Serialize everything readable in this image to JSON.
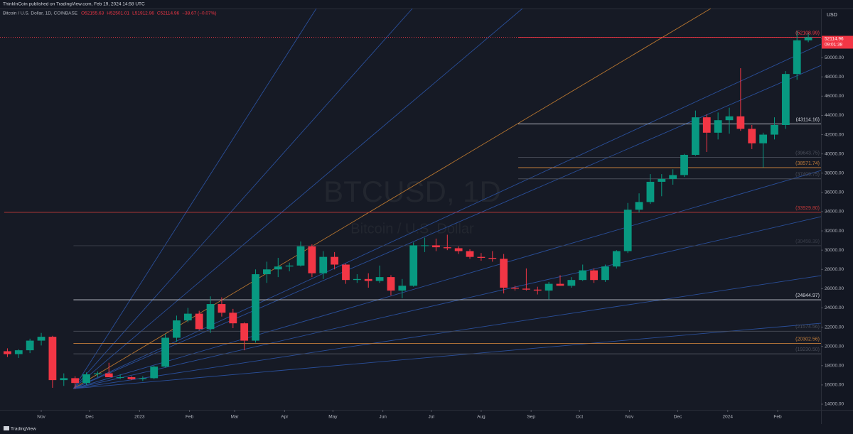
{
  "header": {
    "publisher": "ThinkInCoin published on TradingView.com, Feb 19, 2024 14:58 UTC",
    "symbol": "Bitcoin / U.S. Dollar, 1D, COINBASE",
    "legend": [
      "O52155.63",
      "H52501.01",
      "L51912.96",
      "C52114.96",
      "−38.67 (−0.07%)"
    ]
  },
  "footer": {
    "brand": "TradingView"
  },
  "chart_data": {
    "type": "candlestick",
    "title": "BTCUSD, 1D",
    "subtitle": "Bitcoin / U.S. Dollar",
    "y_axis_label": "USD",
    "up_color": "#089981",
    "down_color": "#f23645",
    "x": [
      -24,
      -17,
      -10,
      -3,
      4,
      11,
      18,
      25,
      32,
      39,
      46,
      53,
      60,
      67,
      74,
      81,
      88,
      95,
      102,
      109,
      116,
      123,
      130,
      137,
      144,
      151,
      158,
      165,
      172,
      179,
      186,
      193,
      200,
      207,
      214,
      221,
      228,
      235,
      242,
      249,
      256,
      263,
      270,
      277,
      284,
      291,
      298,
      305,
      312,
      319,
      326,
      333,
      340,
      347,
      354,
      361,
      368,
      375,
      382,
      389,
      396,
      403,
      410,
      417,
      424,
      431,
      438,
      445,
      452,
      459,
      466,
      473
    ],
    "open": [
      19500,
      19200,
      19600,
      20600,
      21000,
      16500,
      16700,
      16200,
      17100,
      17200,
      16800,
      16800,
      16600,
      16700,
      17900,
      20900,
      22700,
      23400,
      21800,
      24400,
      23500,
      22400,
      20600,
      27500,
      28000,
      28300,
      28400,
      30400,
      27600,
      29300,
      28500,
      26900,
      27000,
      26800,
      27200,
      25800,
      26300,
      30500,
      30500,
      30300,
      30200,
      29900,
      29300,
      29200,
      29100,
      26100,
      26000,
      25900,
      25800,
      26500,
      26300,
      26900,
      27900,
      26900,
      28300,
      29900,
      34200,
      35000,
      37100,
      37400,
      37800,
      39900,
      43800,
      42200,
      43500,
      43900,
      42600,
      41100,
      42000,
      43000,
      48300,
      51800
    ],
    "high": [
      19800,
      19700,
      20800,
      21400,
      21100,
      17200,
      16900,
      17300,
      17400,
      18300,
      17100,
      16900,
      16900,
      18000,
      21300,
      23200,
      24000,
      23700,
      25200,
      25100,
      23900,
      22500,
      28000,
      28800,
      29200,
      28700,
      30900,
      30600,
      29900,
      29800,
      28600,
      27500,
      27600,
      28400,
      27400,
      27000,
      30800,
      31300,
      31200,
      31600,
      30400,
      30100,
      29700,
      29900,
      29600,
      26300,
      28100,
      26200,
      26700,
      27400,
      27200,
      28500,
      28100,
      28500,
      30000,
      34900,
      35900,
      37900,
      37900,
      38400,
      40000,
      44500,
      44100,
      44300,
      44800,
      48900,
      43000,
      42200,
      43800,
      48600,
      52800,
      52600
    ],
    "low": [
      18900,
      18800,
      19300,
      20100,
      15700,
      15900,
      15600,
      16000,
      16800,
      16900,
      16600,
      16500,
      16400,
      16600,
      17800,
      20500,
      22500,
      21700,
      21400,
      23100,
      21900,
      19600,
      20400,
      26600,
      27200,
      27800,
      28300,
      27200,
      27000,
      28000,
      26500,
      26600,
      26100,
      26600,
      25300,
      25000,
      26200,
      29800,
      29900,
      30000,
      29600,
      29100,
      28900,
      28800,
      25500,
      25800,
      25800,
      25400,
      24900,
      26300,
      26100,
      26800,
      26600,
      26700,
      28100,
      29700,
      33900,
      34800,
      35600,
      36800,
      37600,
      39800,
      40200,
      41500,
      42100,
      42400,
      40500,
      38600,
      41500,
      42600,
      47700,
      51600
    ],
    "close": [
      19200,
      19600,
      20600,
      21000,
      16500,
      16700,
      16200,
      17100,
      17200,
      16800,
      16800,
      16600,
      16700,
      17900,
      20900,
      22700,
      23400,
      21800,
      24400,
      23500,
      22400,
      20600,
      27500,
      28000,
      28300,
      28400,
      30400,
      27600,
      29300,
      28500,
      26900,
      27000,
      26800,
      27200,
      25800,
      26300,
      30500,
      30500,
      30300,
      30200,
      29900,
      29300,
      29200,
      29100,
      26100,
      26000,
      25900,
      25800,
      26500,
      26300,
      26900,
      27900,
      26900,
      28300,
      29900,
      34200,
      35000,
      37100,
      37400,
      37800,
      39900,
      43800,
      42200,
      43500,
      43900,
      42600,
      41100,
      42000,
      43000,
      48300,
      51800,
      52114.96
    ],
    "last_price": 52114.96,
    "countdown": "09:01:38",
    "xlim": [
      -25.6,
      483.9
    ],
    "ylim": [
      13410,
      55100
    ],
    "xticks": [
      {
        "value": 0,
        "label": "Nov"
      },
      {
        "value": 30,
        "label": "Dec"
      },
      {
        "value": 61,
        "label": "2023"
      },
      {
        "value": 92,
        "label": "Feb"
      },
      {
        "value": 120,
        "label": "Mar"
      },
      {
        "value": 151,
        "label": "Apr"
      },
      {
        "value": 181,
        "label": "May"
      },
      {
        "value": 212,
        "label": "Jun"
      },
      {
        "value": 242,
        "label": "Jul"
      },
      {
        "value": 273,
        "label": "Aug"
      },
      {
        "value": 304,
        "label": "Sep"
      },
      {
        "value": 334,
        "label": "Oct"
      },
      {
        "value": 365,
        "label": "Nov"
      },
      {
        "value": 395,
        "label": "Dec"
      },
      {
        "value": 426,
        "label": "2024"
      },
      {
        "value": 457,
        "label": "Feb"
      }
    ],
    "yticks": [
      {
        "value": 14000,
        "label": "14000.00"
      },
      {
        "value": 16000,
        "label": "16000.00"
      },
      {
        "value": 18000,
        "label": "18000.00"
      },
      {
        "value": 20000,
        "label": "20000.00"
      },
      {
        "value": 22000,
        "label": "22000.00"
      },
      {
        "value": 24000,
        "label": "24000.00"
      },
      {
        "value": 26000,
        "label": "26000.00"
      },
      {
        "value": 28000,
        "label": "28000.00"
      },
      {
        "value": 30000,
        "label": "30000.00"
      },
      {
        "value": 32000,
        "label": "32000.00"
      },
      {
        "value": 34000,
        "label": "34000.00"
      },
      {
        "value": 36000,
        "label": "36000.00"
      },
      {
        "value": 38000,
        "label": "38000.00"
      },
      {
        "value": 40000,
        "label": "40000.00"
      },
      {
        "value": 42000,
        "label": "42000.00"
      },
      {
        "value": 44000,
        "label": "44000.00"
      },
      {
        "value": 46000,
        "label": "46000.00"
      },
      {
        "value": 48000,
        "label": "48000.00"
      },
      {
        "value": 50000,
        "label": "50000.00"
      },
      {
        "value": 52000,
        "label": "52000.00"
      }
    ],
    "levels": [
      {
        "value": 52108.99,
        "label": "(52108.99)",
        "color": "#f23645",
        "start": 296
      },
      {
        "value": 43114.16,
        "label": "(43114.16)",
        "color": "#d1d4dc",
        "start": 296
      },
      {
        "value": 39643.75,
        "label": "(39643.75)",
        "color": "#4a4e5a",
        "start": 296
      },
      {
        "value": 38571.74,
        "label": "(38571.74)",
        "color": "#c27d3a",
        "start": 296
      },
      {
        "value": 37409.75,
        "label": "(37409.75)",
        "color": "#4a4e5a",
        "start": 296
      },
      {
        "value": 33929.8,
        "label": "(33929.80)",
        "color": "#c43a3a",
        "start": -23
      },
      {
        "value": 30458.39,
        "label": "(30458.39)",
        "color": "#3a3e4a",
        "start": 20
      },
      {
        "value": 24844.97,
        "label": "(24844.97)",
        "color": "#d1d4dc",
        "start": 20
      },
      {
        "value": 21574.56,
        "label": "(21574.56)",
        "color": "#4a4e5a",
        "start": 20
      },
      {
        "value": 20302.56,
        "label": "(20302.56)",
        "color": "#c27d3a",
        "start": 20
      },
      {
        "value": 19230.5,
        "label": "(19230.50)",
        "color": "#4a4e5a",
        "start": 20
      }
    ],
    "fan": {
      "origin": [
        20,
        15620
      ],
      "lines": [
        {
          "to": [
            170.7,
            55100
          ],
          "color": "#2a4f9a"
        },
        {
          "to": [
            230.3,
            55100
          ],
          "color": "#2a4f9a"
        },
        {
          "to": [
            298.6,
            55100
          ],
          "color": "#2a4f9a"
        },
        {
          "to": [
            415.5,
            55100
          ],
          "color": "#b8762f"
        },
        {
          "to": [
            483.9,
            51410
          ],
          "color": "#2a4f9a"
        },
        {
          "to": [
            483.9,
            49196
          ],
          "color": "#2a4f9a"
        },
        {
          "to": [
            483.9,
            38273
          ],
          "color": "#2a4f9a"
        },
        {
          "to": [
            483.9,
            33476
          ],
          "color": "#2a4f9a"
        },
        {
          "to": [
            483.9,
            27351
          ],
          "color": "#2a4f9a"
        },
        {
          "to": [
            483.9,
            22410
          ],
          "color": "#2a4f9a"
        }
      ]
    }
  }
}
